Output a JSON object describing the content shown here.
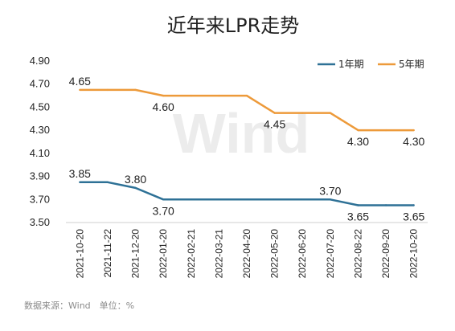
{
  "chart_data": {
    "type": "line",
    "title": "近年来LPR走势",
    "categories": [
      "2021-10-20",
      "2021-11-22",
      "2021-12-20",
      "2022-01-20",
      "2022-02-21",
      "2022-03-21",
      "2022-04-20",
      "2022-05-20",
      "2022-06-20",
      "2022-07-20",
      "2022-08-22",
      "2022-09-20",
      "2022-10-20"
    ],
    "series": [
      {
        "name": "1年期",
        "color": "#2e7196",
        "values": [
          3.85,
          3.85,
          3.8,
          3.7,
          3.7,
          3.7,
          3.7,
          3.7,
          3.7,
          3.7,
          3.65,
          3.65,
          3.65
        ]
      },
      {
        "name": "5年期",
        "color": "#ed9a3a",
        "values": [
          4.65,
          4.65,
          4.65,
          4.6,
          4.6,
          4.6,
          4.6,
          4.45,
          4.45,
          4.45,
          4.3,
          4.3,
          4.3
        ]
      }
    ],
    "yticks": [
      "3.50",
      "3.70",
      "3.90",
      "4.10",
      "4.30",
      "4.50",
      "4.70",
      "4.90"
    ],
    "ylim": [
      3.5,
      4.9
    ],
    "grid": false,
    "legend_position": "top-right",
    "data_labels": [
      {
        "series": 0,
        "index": 0,
        "text": "3.85",
        "pos": "above"
      },
      {
        "series": 0,
        "index": 2,
        "text": "3.80",
        "pos": "above"
      },
      {
        "series": 0,
        "index": 3,
        "text": "3.70",
        "pos": "below"
      },
      {
        "series": 0,
        "index": 9,
        "text": "3.70",
        "pos": "above"
      },
      {
        "series": 0,
        "index": 10,
        "text": "3.65",
        "pos": "below"
      },
      {
        "series": 0,
        "index": 12,
        "text": "3.65",
        "pos": "below"
      },
      {
        "series": 1,
        "index": 0,
        "text": "4.65",
        "pos": "above"
      },
      {
        "series": 1,
        "index": 3,
        "text": "4.60",
        "pos": "below"
      },
      {
        "series": 1,
        "index": 7,
        "text": "4.45",
        "pos": "below"
      },
      {
        "series": 1,
        "index": 10,
        "text": "4.30",
        "pos": "below"
      },
      {
        "series": 1,
        "index": 12,
        "text": "4.30",
        "pos": "below"
      }
    ],
    "watermark": "Wind",
    "source": "数据来源：Wind　单位：%"
  }
}
